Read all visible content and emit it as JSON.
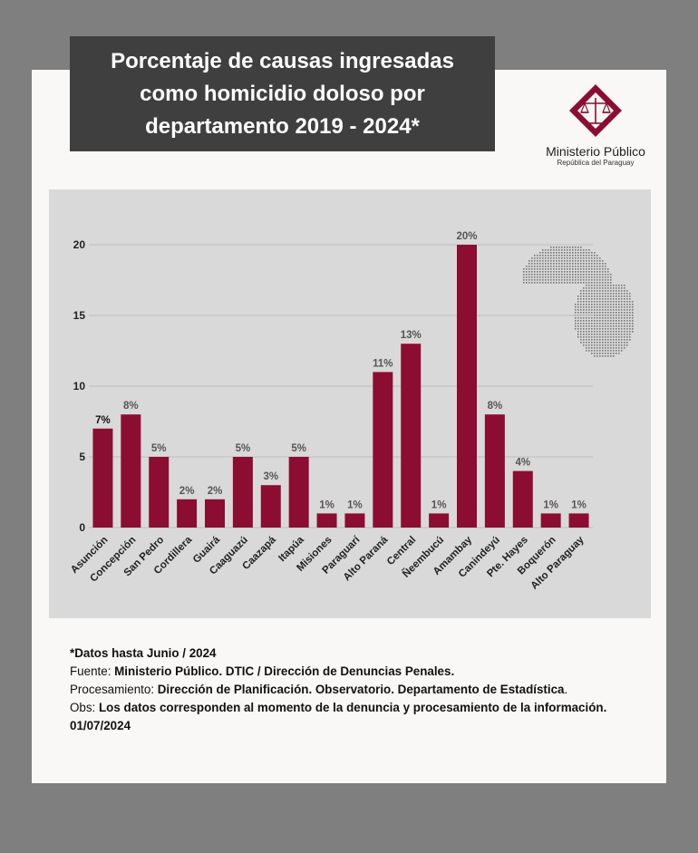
{
  "title": "Porcentaje de causas ingresadas\ncomo homicidio doloso por\ndepartamento  2019 - 2024*",
  "logo": {
    "name": "Ministerio Público",
    "subtitle": "República del Paraguay"
  },
  "colors": {
    "bar": "#8b0d32",
    "panel": "#d9d9d9",
    "title_bg": "#3f3f3f",
    "logo": "#8b0d32"
  },
  "chart_data": {
    "type": "bar",
    "title": "",
    "xlabel": "",
    "ylabel": "",
    "ylim": [
      0,
      20
    ],
    "yticks": [
      0,
      5,
      10,
      15,
      20
    ],
    "grid": true,
    "categories": [
      "Asunción",
      "Concepción",
      "San Pedro",
      "Cordillera",
      "Guairá",
      "Caaguazú",
      "Caazapá",
      "Itapúa",
      "Misiones",
      "Paraguarí",
      "Alto Paraná",
      "Central",
      "Ñeembucú",
      "Amambay",
      "Canindeyú",
      "Pte. Hayes",
      "Boquerón",
      "Alto Paraguay"
    ],
    "values": [
      7,
      8,
      5,
      2,
      2,
      5,
      3,
      5,
      1,
      1,
      11,
      13,
      1,
      20,
      8,
      4,
      1,
      1
    ],
    "data_labels": [
      "7%",
      "8%",
      "5%",
      "2%",
      "2%",
      "5%",
      "3%",
      "5%",
      "1%",
      "1%",
      "11%",
      "13%",
      "1%",
      "20%",
      "8%",
      "4%",
      "1%",
      "1%"
    ]
  },
  "notes": {
    "line1": "*Datos hasta Junio / 2024",
    "line2_label": "Fuente: ",
    "line2_value": "Ministerio Público. DTIC / Dirección de Denuncias Penales.",
    "line3_label": "Procesamiento: ",
    "line3_value": "Dirección de Planificación. Observatorio. Departamento de Estadística",
    "line3_end": ".",
    "line4_label": "Obs: ",
    "line4_value": "Los datos corresponden al momento de la denuncia y procesamiento de la información.",
    "line5": "01/07/2024"
  }
}
